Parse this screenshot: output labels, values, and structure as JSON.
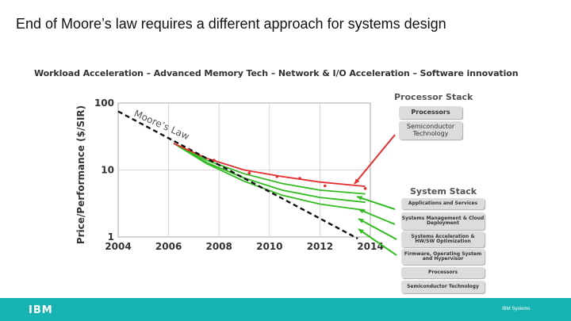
{
  "slide": {
    "title": "End of Moore’s law requires a different approach for systems design",
    "subtitle": "Workload Acceleration – Advanced Memory Tech – Network & I/O Acceleration – Software innovation"
  },
  "chart_data": {
    "type": "line",
    "ylabel": "Price/Performance ($/SIR)",
    "yscale": "log",
    "ylim": [
      1,
      100
    ],
    "xlim": [
      2004,
      2014
    ],
    "x_ticks": [
      "2004",
      "2006",
      "2008",
      "2010",
      "2012",
      "2014"
    ],
    "y_ticks": [
      "100",
      "10",
      "1"
    ],
    "annotation": "Moore’s Law",
    "moores_law_line": {
      "x": [
        2004,
        2013.5
      ],
      "y": [
        75,
        1
      ]
    },
    "observed_points": {
      "x": [
        2006.8,
        2007.8,
        2009.2,
        2010.3,
        2011.2,
        2012.2,
        2013.8
      ],
      "y": [
        20,
        14,
        9,
        8,
        7.5,
        5.8,
        5.3
      ]
    },
    "processor_curve": {
      "x": [
        2006.2,
        2007.5,
        2009,
        2010.5,
        2012,
        2013.8
      ],
      "y": [
        25,
        15,
        10,
        8,
        6.6,
        5.7
      ]
    },
    "system_curves": [
      {
        "x": [
          2006.2,
          2007.5,
          2009,
          2010.5,
          2012,
          2013.8
        ],
        "y": [
          25,
          14,
          8.8,
          6.3,
          5,
          4.4
        ]
      },
      {
        "x": [
          2006.2,
          2007.5,
          2009,
          2010.5,
          2012,
          2013.8
        ],
        "y": [
          25,
          13,
          7.6,
          5,
          3.9,
          3.3
        ]
      },
      {
        "x": [
          2006.2,
          2007.5,
          2009,
          2010.5,
          2012,
          2013.8
        ],
        "y": [
          25,
          12.5,
          6.8,
          4.2,
          3.1,
          2.5
        ]
      }
    ],
    "colors": {
      "processor": "#e03030",
      "system": "#33bb22",
      "moore": "#111111",
      "grid": "#cccccc"
    }
  },
  "processor_stack": {
    "heading": "Processor Stack",
    "items": [
      "Processors",
      "Semiconductor Technology"
    ]
  },
  "system_stack": {
    "heading": "System Stack",
    "items": [
      "Applications and Services",
      "Systems Management & Cloud Deployment",
      "Systems Acceleration & HW/SW Optimization",
      "Firmware, Operating System and Hypervisor",
      "Processors",
      "Semiconductor Technology"
    ]
  },
  "footer": {
    "logo": "IBM",
    "label": "IBM Systems"
  }
}
